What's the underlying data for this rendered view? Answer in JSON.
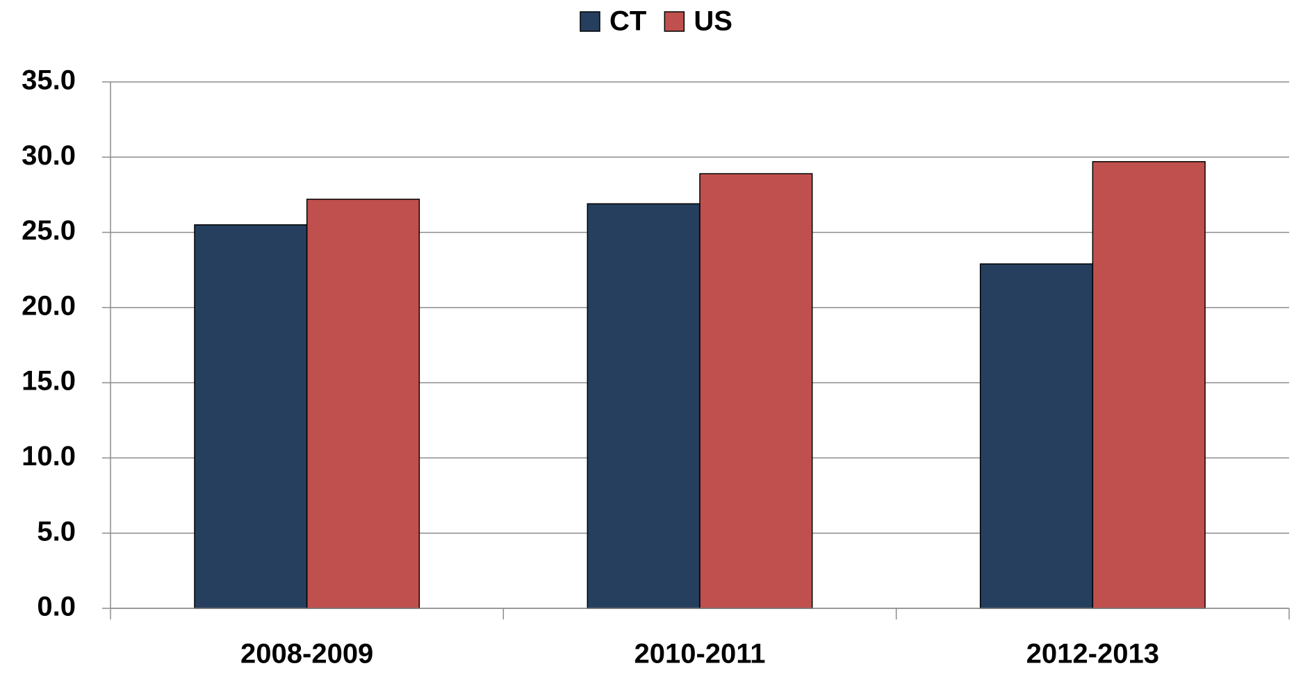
{
  "chart_data": {
    "type": "bar",
    "categories": [
      "2008-2009",
      "2010-2011",
      "2012-2013"
    ],
    "series": [
      {
        "name": "CT",
        "color": "#263f5f",
        "values": [
          25.5,
          26.9,
          22.9
        ]
      },
      {
        "name": "US",
        "color": "#c0504d",
        "values": [
          27.2,
          28.9,
          29.7
        ]
      }
    ],
    "ylim": [
      0,
      35
    ],
    "yticks": [
      {
        "value": 0,
        "label": "0.0"
      },
      {
        "value": 5,
        "label": "5.0"
      },
      {
        "value": 10,
        "label": "10.0"
      },
      {
        "value": 15,
        "label": "15.0"
      },
      {
        "value": 20,
        "label": "20.0"
      },
      {
        "value": 25,
        "label": "25.0"
      },
      {
        "value": 30,
        "label": "30.0"
      },
      {
        "value": 35,
        "label": "35.0"
      }
    ],
    "grid": true,
    "legend": "top"
  }
}
